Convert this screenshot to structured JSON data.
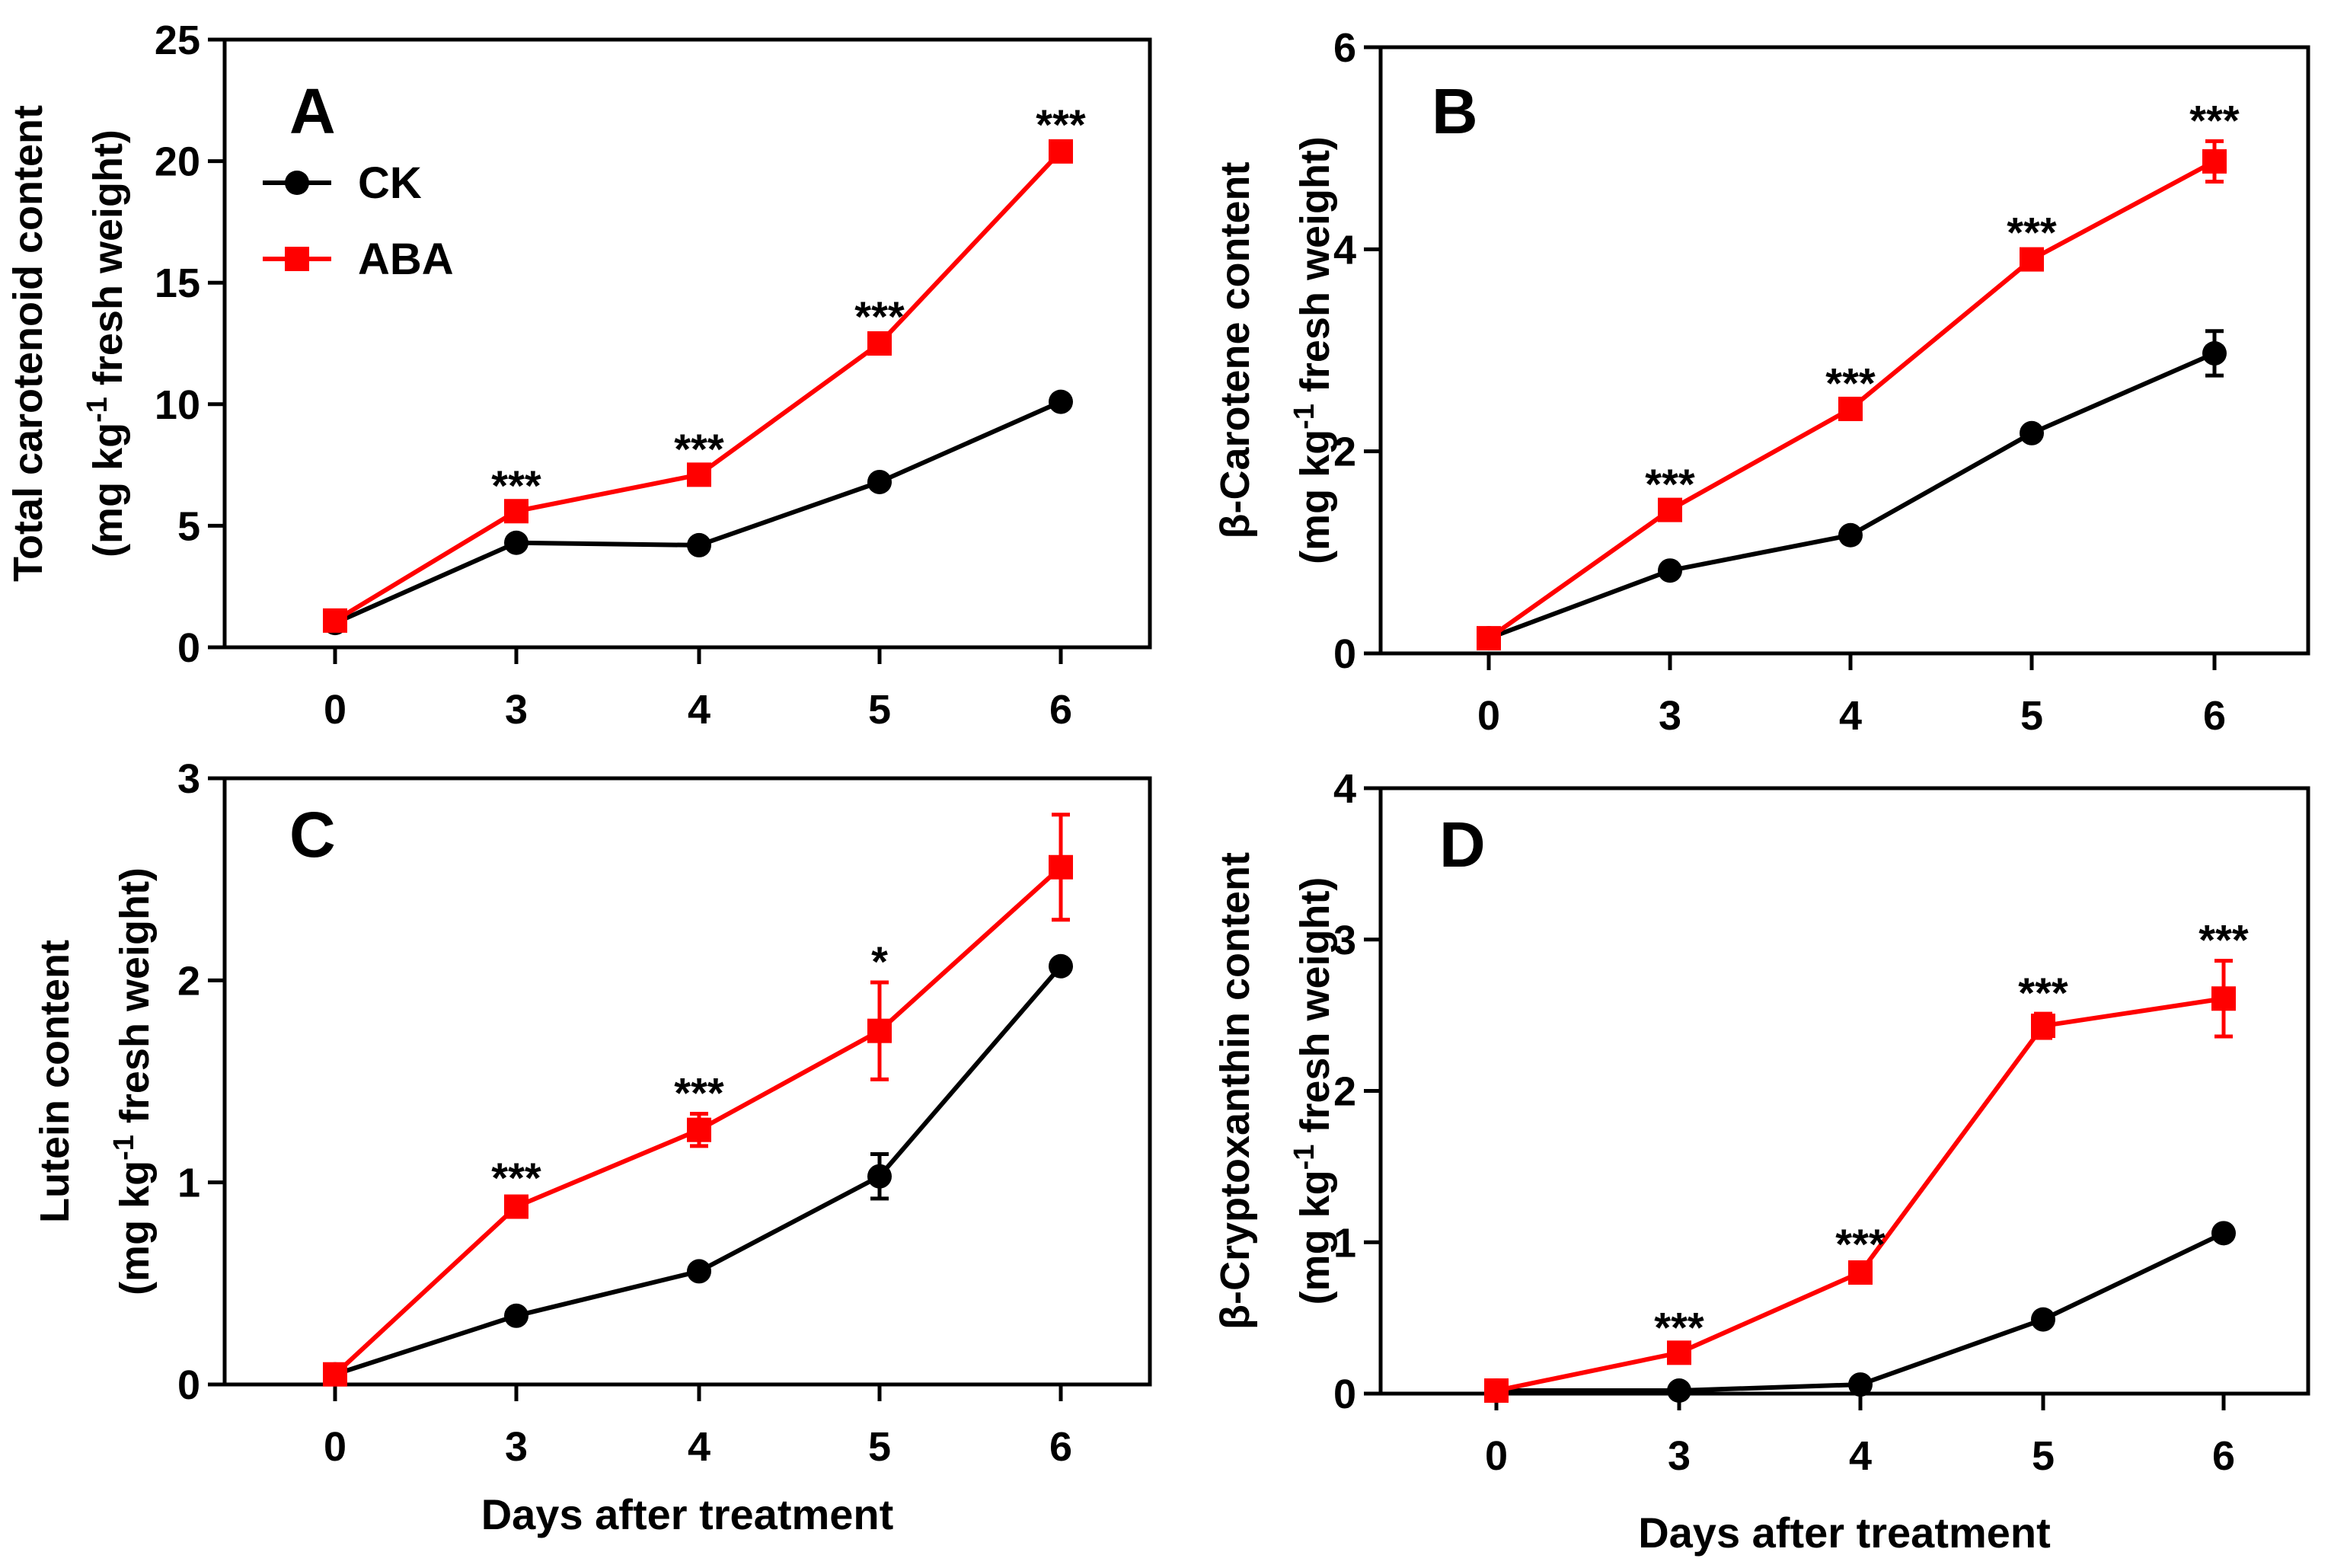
{
  "colors": {
    "CK": "#000000",
    "ABA": "#ff0000"
  },
  "legend": [
    {
      "name": "CK",
      "marker": "circle"
    },
    {
      "name": "ABA",
      "marker": "square"
    }
  ],
  "chart_data": [
    {
      "panel": "A",
      "type": "line",
      "title": "",
      "xlabel": "",
      "ylabel_line1": "Total carotenoid content",
      "ylabel_line2_prefix": "(mg kg",
      "ylabel_superscript": "-1",
      "ylabel_line2_suffix": " fresh weight)",
      "categories": [
        "0",
        "3",
        "4",
        "5",
        "6"
      ],
      "yticks": [
        "0",
        "5",
        "10",
        "15",
        "20",
        "25"
      ],
      "ylim": [
        0,
        25
      ],
      "series": [
        {
          "name": "CK",
          "values": [
            1.0,
            4.3,
            4.2,
            6.8,
            10.1
          ],
          "errors": [
            0.1,
            0.15,
            0.15,
            0.2,
            0.2
          ]
        },
        {
          "name": "ABA",
          "values": [
            1.1,
            5.6,
            7.1,
            12.5,
            20.4
          ],
          "errors": [
            0.1,
            0.2,
            0.2,
            0.25,
            0.25
          ]
        }
      ],
      "significance": [
        "",
        "***",
        "***",
        "***",
        "***"
      ],
      "show_legend": true
    },
    {
      "panel": "B",
      "type": "line",
      "title": "",
      "xlabel": "",
      "ylabel_line1": "β-Carotene content",
      "ylabel_line2_prefix": "(mg kg",
      "ylabel_superscript": "-1",
      "ylabel_line2_suffix": " fresh weight)",
      "categories": [
        "0",
        "3",
        "4",
        "5",
        "6"
      ],
      "yticks": [
        "0",
        "2",
        "4",
        "6"
      ],
      "ylim": [
        0,
        6
      ],
      "series": [
        {
          "name": "CK",
          "values": [
            0.15,
            0.82,
            1.17,
            2.18,
            2.97
          ],
          "errors": [
            0.03,
            0.04,
            0.04,
            0.05,
            0.22
          ]
        },
        {
          "name": "ABA",
          "values": [
            0.15,
            1.42,
            2.42,
            3.9,
            4.87
          ],
          "errors": [
            0.03,
            0.05,
            0.05,
            0.06,
            0.2
          ]
        }
      ],
      "significance": [
        "",
        "***",
        "***",
        "***",
        "***"
      ],
      "show_legend": false
    },
    {
      "panel": "C",
      "type": "line",
      "title": "",
      "xlabel": "Days after treatment",
      "ylabel_line1": "Lutein content",
      "ylabel_line2_prefix": "(mg kg",
      "ylabel_superscript": "-1",
      "ylabel_line2_suffix": " fresh weight)",
      "categories": [
        "0",
        "3",
        "4",
        "5",
        "6"
      ],
      "yticks": [
        "0",
        "1",
        "2",
        "3"
      ],
      "ylim": [
        0,
        3
      ],
      "series": [
        {
          "name": "CK",
          "values": [
            0.05,
            0.34,
            0.56,
            1.03,
            2.07
          ],
          "errors": [
            0.01,
            0.02,
            0.03,
            0.11,
            0.03
          ]
        },
        {
          "name": "ABA",
          "values": [
            0.05,
            0.88,
            1.26,
            1.75,
            2.56
          ],
          "errors": [
            0.01,
            0.04,
            0.08,
            0.24,
            0.26
          ]
        }
      ],
      "significance": [
        "",
        "***",
        "***",
        "*",
        ""
      ],
      "show_legend": false
    },
    {
      "panel": "D",
      "type": "line",
      "title": "",
      "xlabel": "Days after treatment",
      "ylabel_line1": "β-Cryptoxanthin content",
      "ylabel_line2_prefix": "(mg kg",
      "ylabel_superscript": "-1",
      "ylabel_line2_suffix": " fresh weight)",
      "categories": [
        "0",
        "3",
        "4",
        "5",
        "6"
      ],
      "yticks": [
        "0",
        "1",
        "2",
        "3",
        "4"
      ],
      "ylim": [
        0,
        4
      ],
      "series": [
        {
          "name": "CK",
          "values": [
            0.02,
            0.02,
            0.06,
            0.49,
            1.06
          ],
          "errors": [
            0.01,
            0.01,
            0.02,
            0.03,
            0.03
          ]
        },
        {
          "name": "ABA",
          "values": [
            0.02,
            0.27,
            0.8,
            2.43,
            2.61
          ],
          "errors": [
            0.01,
            0.03,
            0.05,
            0.08,
            0.25
          ]
        }
      ],
      "significance": [
        "",
        "***",
        "***",
        "***",
        "***"
      ],
      "show_legend": false
    }
  ]
}
